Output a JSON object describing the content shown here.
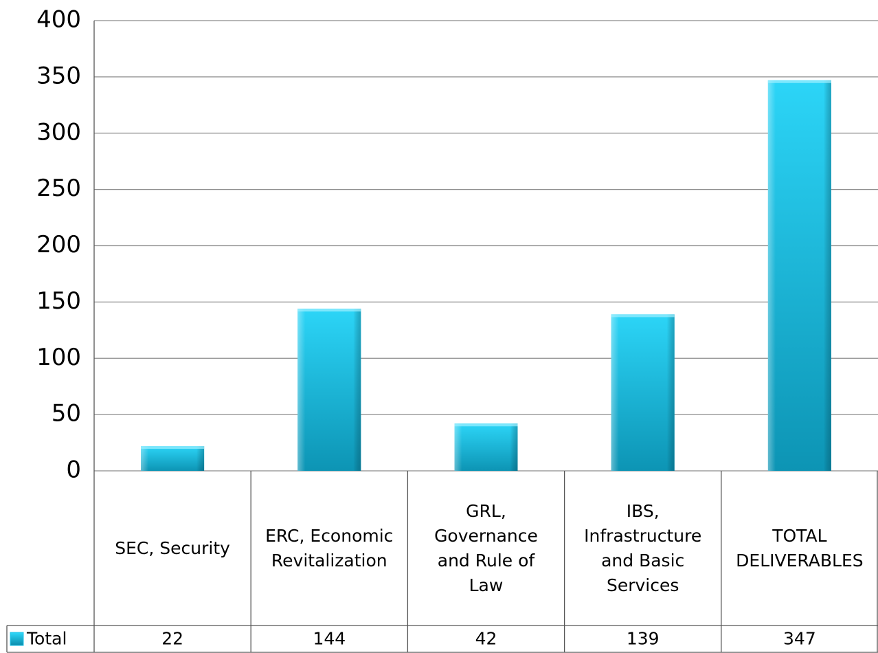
{
  "chart_data": {
    "type": "bar",
    "categories": [
      "SEC, Security",
      "ERC, Economic Revitalization",
      "GRL, Governance and Rule of Law",
      "IBS, Infrastructure and Basic Services",
      "TOTAL DELIVERABLES"
    ],
    "series": [
      {
        "name": "Total",
        "color": "#1cc3e8",
        "values": [
          22,
          144,
          42,
          139,
          347
        ]
      }
    ],
    "ylim": [
      0,
      400
    ],
    "yticks": [
      0,
      50,
      100,
      150,
      200,
      250,
      300,
      350,
      400
    ],
    "grid": true,
    "data_table": true
  }
}
